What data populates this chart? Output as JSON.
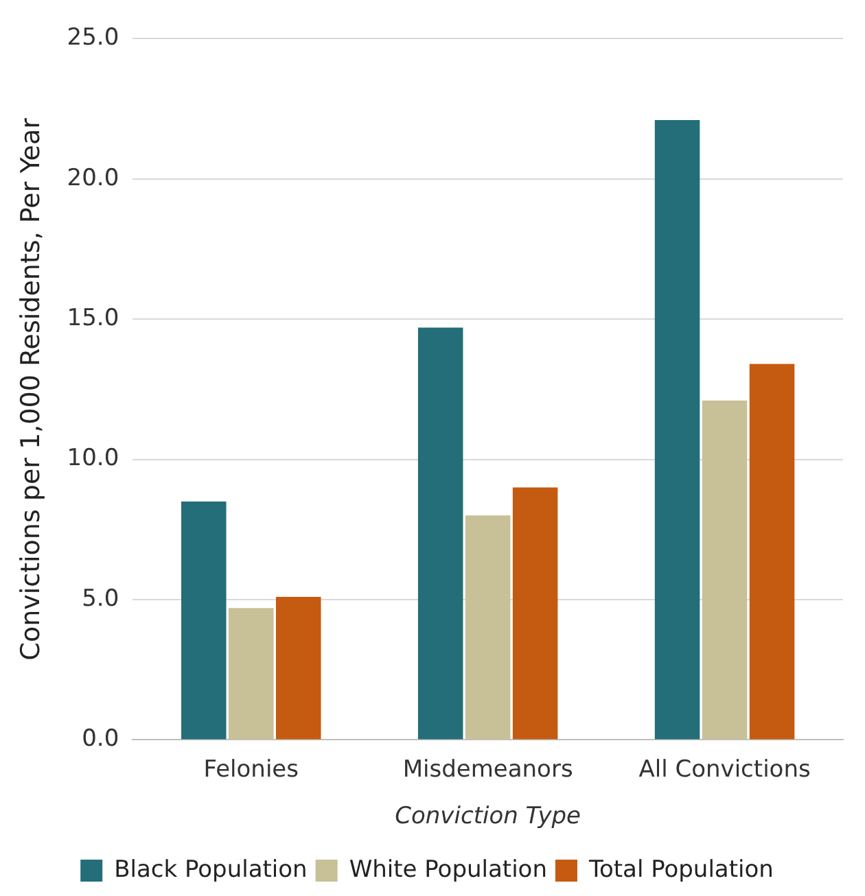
{
  "chart_data": {
    "type": "bar",
    "categories": [
      "Felonies",
      "Misdemeanors",
      "All Convictions"
    ],
    "xlabel": "Conviction Type",
    "ylabel": "Convictions per 1,000 Residents, Per Year",
    "series": [
      {
        "name": "Black Population",
        "color": "#236e78",
        "values": [
          8.5,
          14.7,
          22.1
        ]
      },
      {
        "name": "White Population",
        "color": "#c8c096",
        "values": [
          4.7,
          8.0,
          12.1
        ]
      },
      {
        "name": "Total Population",
        "color": "#c55a11",
        "values": [
          5.1,
          9.0,
          13.4
        ]
      }
    ],
    "ylim": [
      0,
      25
    ],
    "yticks": [
      {
        "value": 0,
        "label": "0.0"
      },
      {
        "value": 5,
        "label": "5.0"
      },
      {
        "value": 10,
        "label": "10.0"
      },
      {
        "value": 15,
        "label": "15.0"
      },
      {
        "value": 20,
        "label": "20.0"
      },
      {
        "value": 25,
        "label": "25.0"
      }
    ],
    "grid": "y",
    "legend": "bottom"
  }
}
